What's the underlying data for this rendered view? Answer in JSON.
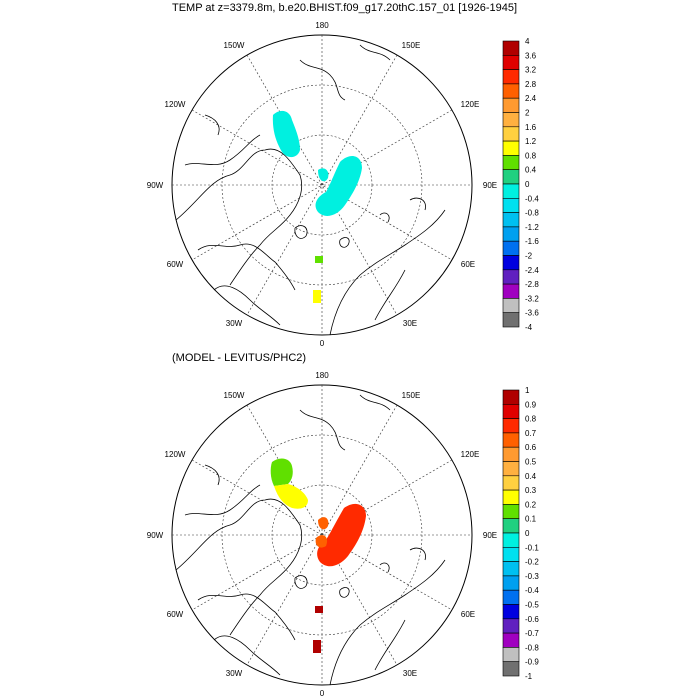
{
  "titles": {
    "top": "TEMP at z=3379.8m, b.e20.BHIST.f09_g17.20thC.157_01 [1926-1945]",
    "bottom": "(MODEL - LEVITUS/PHC2)"
  },
  "longitude_labels": {
    "top_0": "180",
    "top_1": "150E",
    "top_2": "120E",
    "top_3": "90E",
    "top_4": "60E",
    "top_5": "30E",
    "top_6": "0",
    "top_7": "30W",
    "top_8": "60W",
    "top_9": "90W",
    "top_10": "120W",
    "top_11": "150W"
  },
  "colorbar_top": {
    "labels": [
      "4",
      "3.6",
      "3.2",
      "2.8",
      "2.4",
      "2",
      "1.6",
      "1.2",
      "0.8",
      "0.4",
      "0",
      "-0.4",
      "-0.8",
      "-1.2",
      "-1.6",
      "-2",
      "-2.4",
      "-2.8",
      "-3.2",
      "-3.6",
      "-4"
    ],
    "colors": [
      "#b00000",
      "#e00000",
      "#ff2a00",
      "#ff6000",
      "#ff9a30",
      "#ffb040",
      "#ffd040",
      "#ffff00",
      "#60e000",
      "#20d080",
      "#00f0e0",
      "#00e0f0",
      "#00c0f0",
      "#00a0f0",
      "#0070f0",
      "#0000e0",
      "#6020c0",
      "#a000c0",
      "#c0c0c0",
      "#707070"
    ]
  },
  "colorbar_bottom": {
    "labels": [
      "1",
      "0.9",
      "0.8",
      "0.7",
      "0.6",
      "0.5",
      "0.4",
      "0.3",
      "0.2",
      "0.1",
      "0",
      "-0.1",
      "-0.2",
      "-0.3",
      "-0.4",
      "-0.5",
      "-0.6",
      "-0.7",
      "-0.8",
      "-0.9",
      "-1"
    ],
    "colors": [
      "#b00000",
      "#e00000",
      "#ff2a00",
      "#ff6000",
      "#ff9a30",
      "#ffb040",
      "#ffd040",
      "#ffff00",
      "#60e000",
      "#20d080",
      "#00f0e0",
      "#00e0f0",
      "#00c0f0",
      "#00a0f0",
      "#0070f0",
      "#0000e0",
      "#6020c0",
      "#a000c0",
      "#c0c0c0",
      "#707070"
    ]
  },
  "field_colors": {
    "top_cyan": "#00f0e0",
    "top_green": "#60e000",
    "top_yellow": "#ffff00",
    "bot_green": "#60e000",
    "bot_yellow": "#ffff00",
    "bot_red": "#ff2a00",
    "bot_orange": "#ff6000",
    "bot_darkred": "#b00000"
  }
}
